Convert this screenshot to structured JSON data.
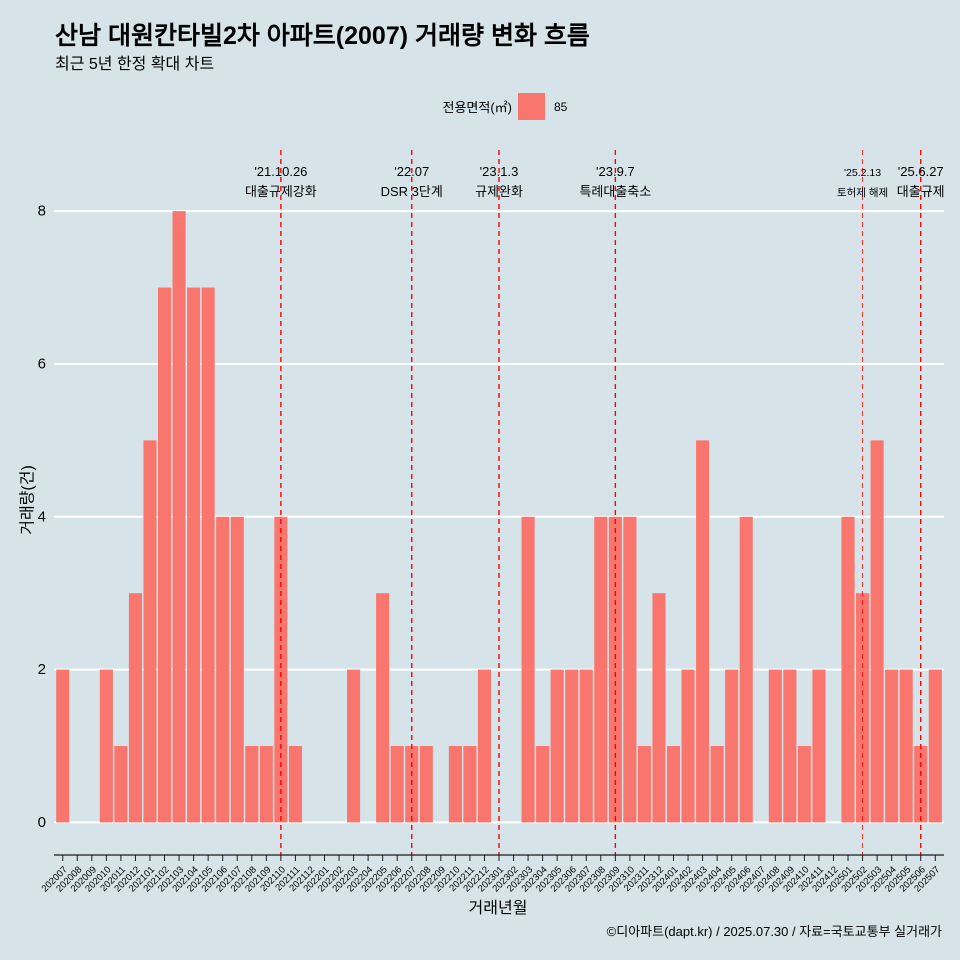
{
  "colors": {
    "background": "#D6E4EA",
    "grid": "#FFFFFF",
    "axis": "#1A1A1A",
    "event_line": "#FF0000"
  },
  "chart_data": {
    "type": "bar",
    "title": "산남 대원칸타빌2차 아파트(2007) 거래량 변화 흐름",
    "subtitle": "최근 5년 한정 확대 차트",
    "xlabel": "거래년월",
    "ylabel": "거래량(건)",
    "legend_title": "전용면적(㎡)",
    "legend_position": "top",
    "caption": "©디아파트(dapt.kr) / 2025.07.30 / 자료=국토교통부 실거래가",
    "ylim": [
      -0.4,
      8.8
    ],
    "yticks": [
      0,
      2,
      4,
      6,
      8
    ],
    "grid": true,
    "categories": [
      "202007",
      "202008",
      "202009",
      "202010",
      "202011",
      "202012",
      "202101",
      "202102",
      "202103",
      "202104",
      "202105",
      "202106",
      "202107",
      "202108",
      "202109",
      "202110",
      "202111",
      "202112",
      "202201",
      "202202",
      "202203",
      "202204",
      "202205",
      "202206",
      "202207",
      "202208",
      "202209",
      "202210",
      "202211",
      "202212",
      "202301",
      "202302",
      "202303",
      "202304",
      "202305",
      "202306",
      "202307",
      "202308",
      "202309",
      "202310",
      "202311",
      "202312",
      "202401",
      "202402",
      "202403",
      "202404",
      "202405",
      "202406",
      "202407",
      "202408",
      "202409",
      "202410",
      "202411",
      "202412",
      "202501",
      "202502",
      "202503",
      "202504",
      "202505",
      "202506",
      "202507"
    ],
    "series": [
      {
        "name": "85",
        "color": "#F8766D",
        "values": [
          2,
          0,
          0,
          2,
          1,
          3,
          5,
          7,
          8,
          7,
          7,
          4,
          4,
          1,
          1,
          4,
          1,
          0,
          0,
          0,
          2,
          0,
          3,
          1,
          1,
          1,
          0,
          1,
          1,
          2,
          0,
          0,
          4,
          1,
          2,
          2,
          2,
          4,
          4,
          4,
          1,
          3,
          1,
          2,
          5,
          1,
          2,
          4,
          0,
          2,
          2,
          1,
          2,
          0,
          4,
          3,
          5,
          2,
          2,
          1,
          2
        ]
      }
    ],
    "events": [
      {
        "x": "202110",
        "date": "'21.10.26",
        "label": "대출규제강화"
      },
      {
        "x": "202207",
        "date": "'22.07",
        "label": "DSR 3단계"
      },
      {
        "x": "202301",
        "date": "'23.1.3",
        "label": "규제완화"
      },
      {
        "x": "202309",
        "date": "'23.9.7",
        "label": "특례대출축소"
      },
      {
        "x": "202502",
        "date": "'25.2.13",
        "label": "토허제 해제"
      },
      {
        "x": "202506",
        "date": "'25.6.27",
        "label": "대출규제"
      }
    ]
  }
}
